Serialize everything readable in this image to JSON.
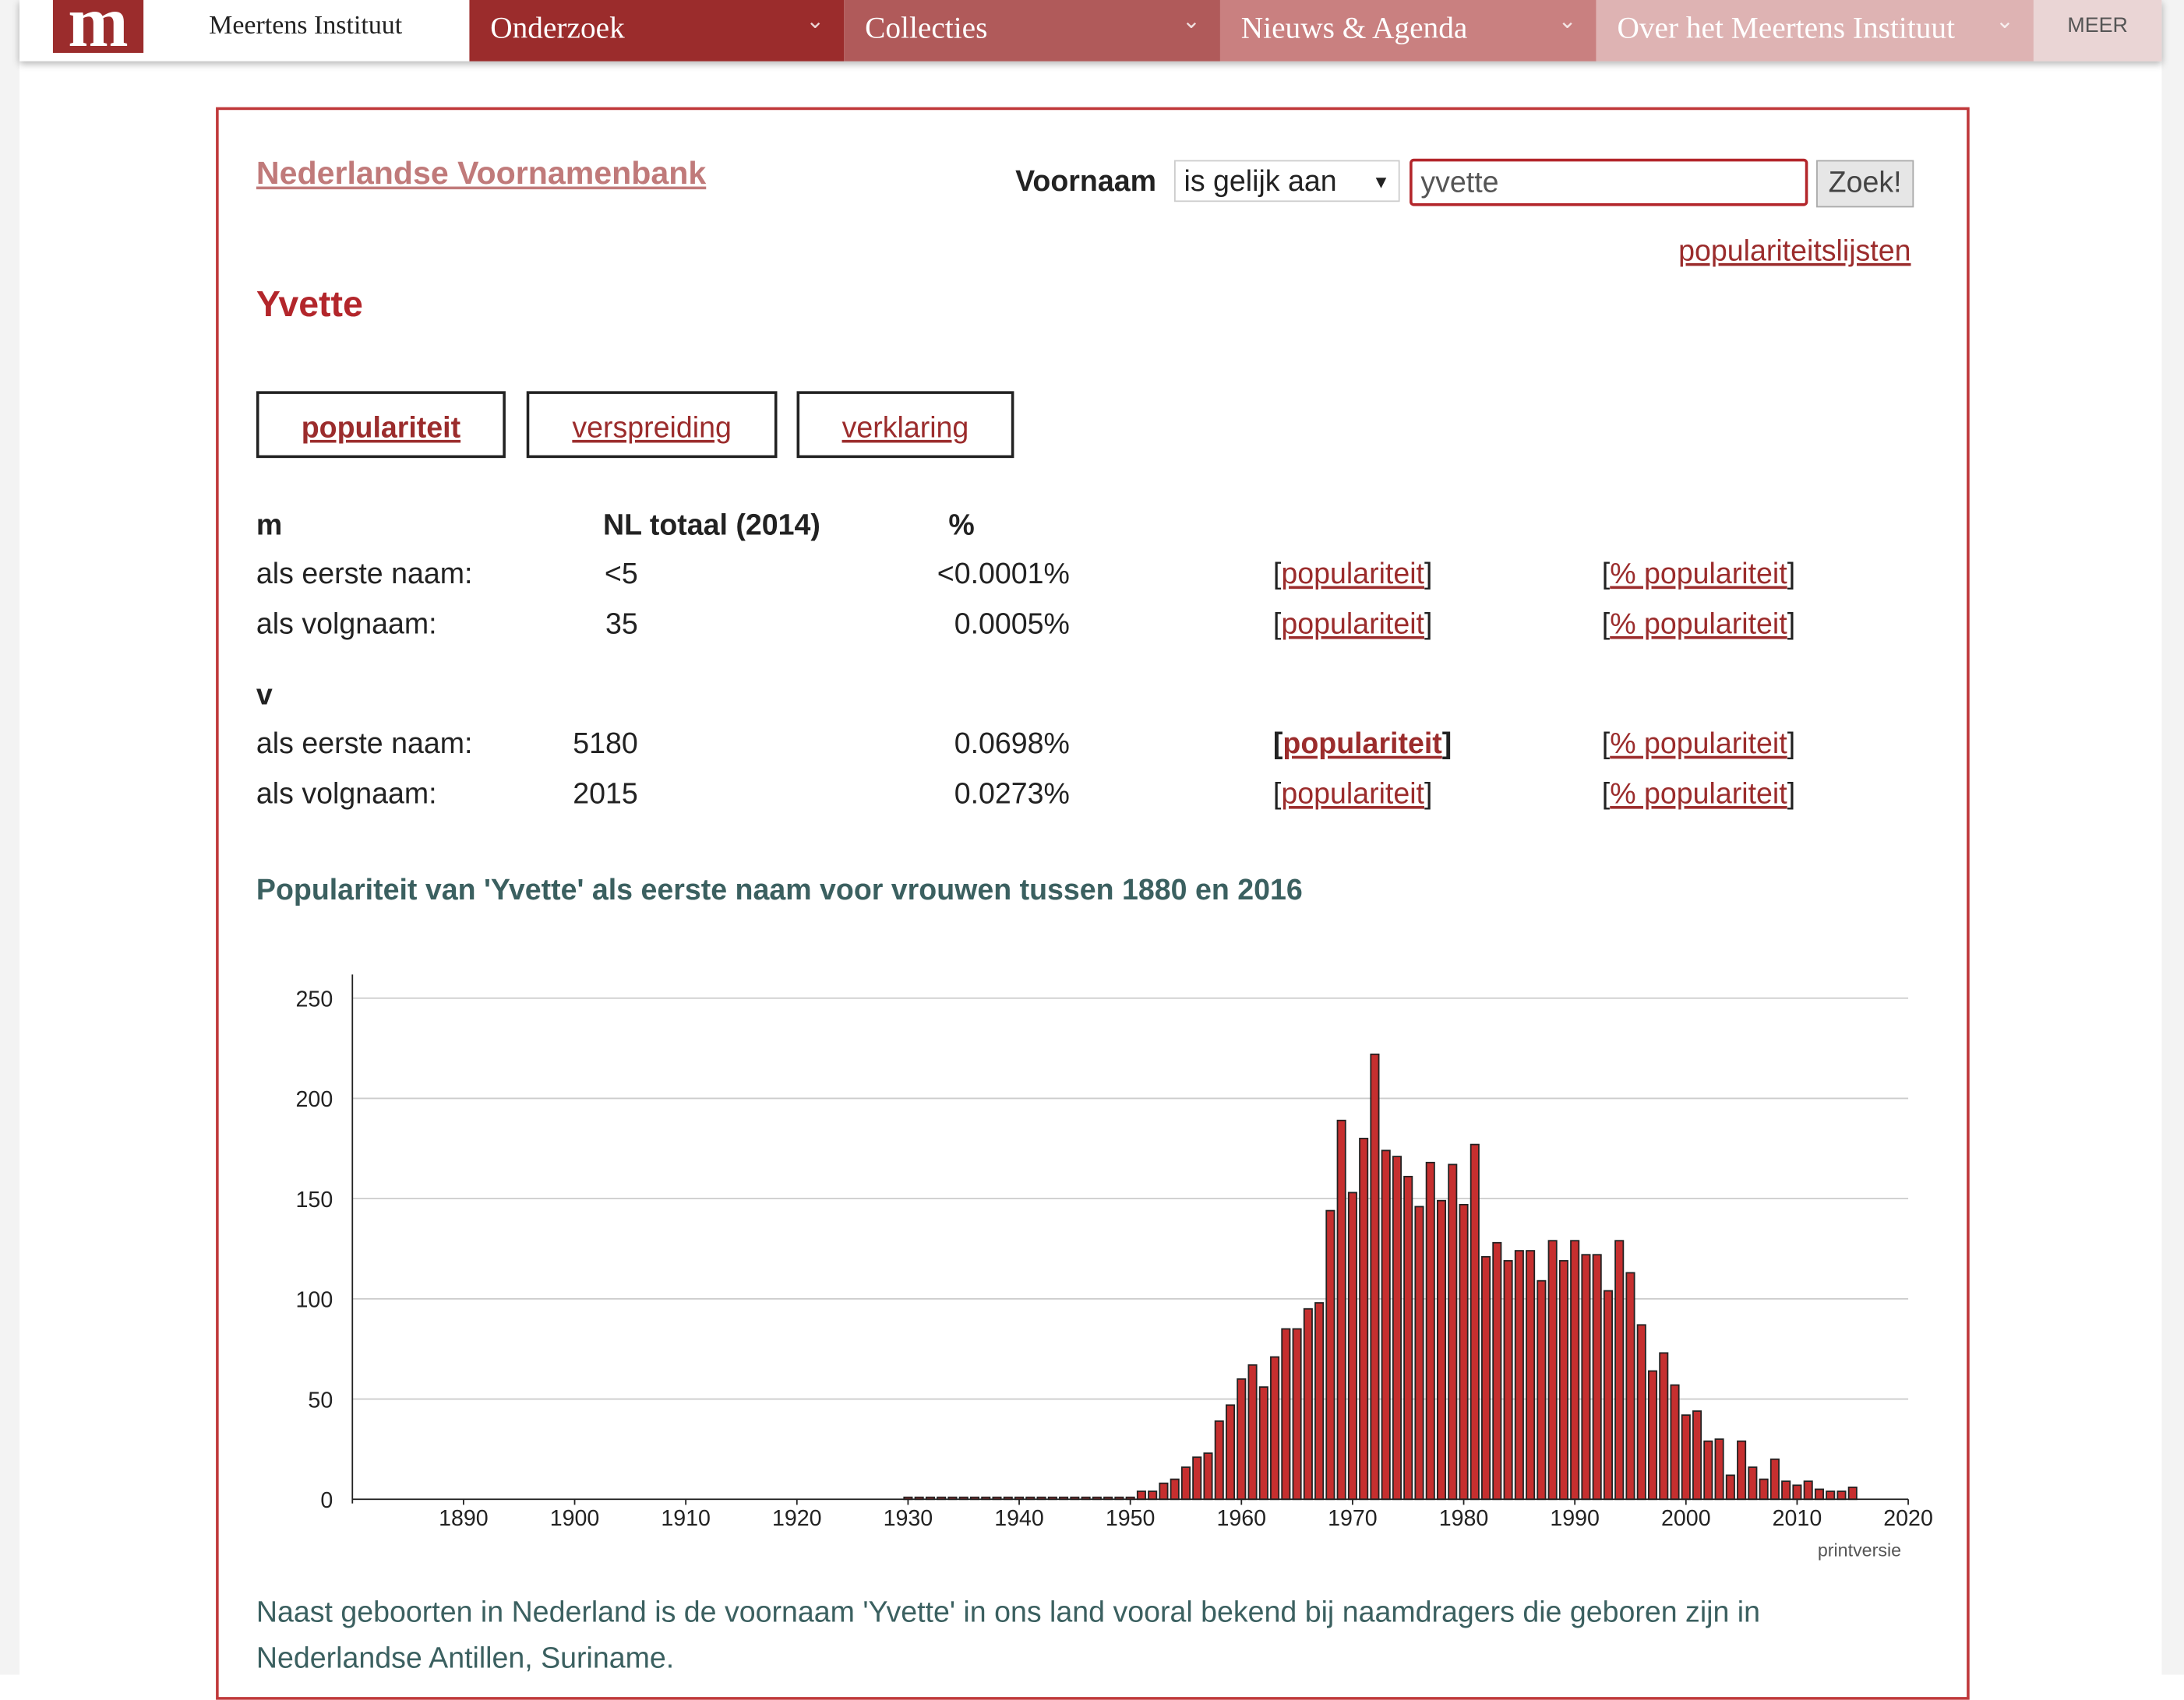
{
  "nav": {
    "logo": "m",
    "site": "Meertens Instituut",
    "items": [
      "Onderzoek",
      "Collecties",
      "Nieuws & Agenda",
      "Over het Meertens Instituut"
    ],
    "more": "MEER"
  },
  "header": {
    "title": "Nederlandse Voornamenbank",
    "search_label": "Voornaam",
    "select": "is gelijk aan",
    "input": "yvette",
    "button": "Zoek!",
    "lists_link": "populariteitslijsten"
  },
  "name": "Yvette",
  "tabs": [
    "populariteit",
    "verspreiding",
    "verklaring"
  ],
  "table": {
    "columns": [
      "NL totaal (2014)",
      "%"
    ],
    "groups": [
      {
        "label": "m",
        "rows": [
          [
            "als eerste naam:",
            "<5",
            "<0.0001%",
            "populariteit",
            "% populariteit"
          ],
          [
            "als volgnaam:",
            "35",
            "0.0005%",
            "populariteit",
            "% populariteit"
          ]
        ]
      },
      {
        "label": "v",
        "rows": [
          [
            "als eerste naam:",
            "5180",
            "0.0698%",
            "populariteit",
            "% populariteit"
          ],
          [
            "als volgnaam:",
            "2015",
            "0.0273%",
            "populariteit",
            "% populariteit"
          ]
        ]
      }
    ]
  },
  "chart_data": {
    "type": "bar",
    "title": "Populariteit van 'Yvette' als eerste naam voor vrouwen tussen 1880 en 2016",
    "x": [
      1930,
      1931,
      1932,
      1933,
      1934,
      1935,
      1936,
      1937,
      1938,
      1939,
      1940,
      1941,
      1942,
      1943,
      1944,
      1945,
      1946,
      1947,
      1948,
      1949,
      1950,
      1951,
      1952,
      1953,
      1954,
      1955,
      1956,
      1957,
      1958,
      1959,
      1960,
      1961,
      1962,
      1963,
      1964,
      1965,
      1966,
      1967,
      1968,
      1969,
      1970,
      1971,
      1972,
      1973,
      1974,
      1975,
      1976,
      1977,
      1978,
      1979,
      1980,
      1981,
      1982,
      1983,
      1984,
      1985,
      1986,
      1987,
      1988,
      1989,
      1990,
      1991,
      1992,
      1993,
      1994,
      1995,
      1996,
      1997,
      1998,
      1999,
      2000,
      2001,
      2002,
      2003,
      2004,
      2005,
      2006,
      2007,
      2008,
      2009,
      2010,
      2011,
      2012,
      2013,
      2014,
      2015
    ],
    "values": [
      1,
      1,
      1,
      1,
      1,
      1,
      1,
      1,
      1,
      1,
      1,
      1,
      1,
      1,
      1,
      1,
      1,
      1,
      1,
      1,
      1,
      4,
      4,
      8,
      10,
      16,
      21,
      23,
      39,
      47,
      60,
      67,
      56,
      71,
      85,
      85,
      95,
      98,
      144,
      189,
      153,
      180,
      222,
      174,
      171,
      161,
      146,
      168,
      149,
      167,
      147,
      177,
      121,
      128,
      119,
      124,
      124,
      109,
      129,
      119,
      129,
      122,
      122,
      104,
      129,
      113,
      87,
      64,
      73,
      57,
      42,
      44,
      29,
      30,
      12,
      29,
      16,
      10,
      20,
      9,
      7,
      9,
      5,
      4,
      4,
      6
    ],
    "color": "#c62f2f",
    "xlim": [
      1880,
      2020
    ],
    "ylim": [
      0,
      250
    ],
    "xticks": [
      1890,
      1900,
      1910,
      1920,
      1930,
      1940,
      1950,
      1960,
      1970,
      1980,
      1990,
      2000,
      2010,
      2020
    ],
    "yticks": [
      0,
      50,
      100,
      150,
      200,
      250
    ],
    "grid": true
  },
  "print_link": "printversie",
  "footer_text": "Naast geboorten in Nederland is de voornaam 'Yvette' in ons land vooral bekend bij naamdragers die geboren zijn in Nederlandse Antillen, Suriname."
}
